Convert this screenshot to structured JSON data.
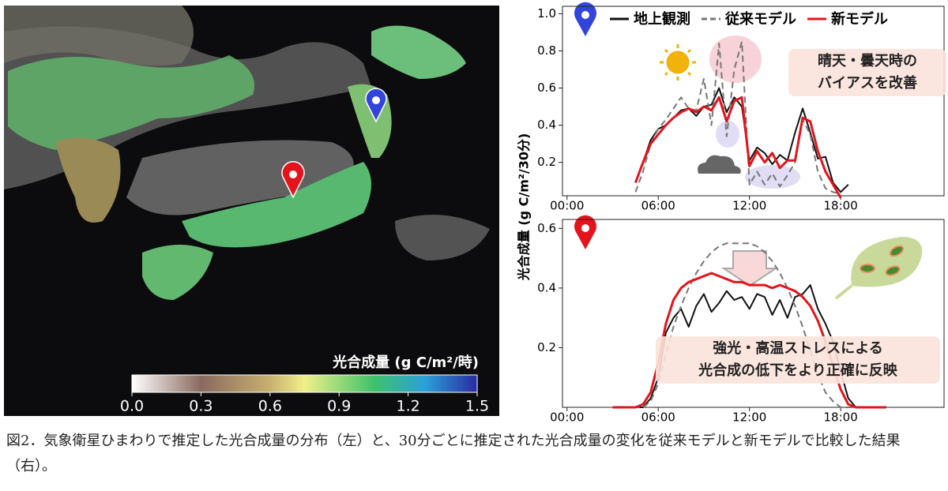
{
  "map": {
    "colorbar_title": "光合成量 (g C/m²/時)",
    "colorbar_lim": [
      0,
      1.5
    ],
    "colorbar_ticks": [
      {
        "value": 0,
        "label": "0.0"
      },
      0.3,
      0.6,
      0.9,
      1.2,
      1.5
    ]
  },
  "ylabel": "光合成量 (g C/m²/30分)",
  "chart_data": [
    {
      "type": "line",
      "xlim": [
        -0.3,
        24.8
      ],
      "ylim": [
        0.02,
        1.04
      ],
      "xticks": [
        {
          "value": 0,
          "label": "00:00"
        },
        {
          "value": 6,
          "label": "06:00"
        },
        {
          "value": 12,
          "label": "12:00"
        },
        {
          "value": 18,
          "label": "18:00"
        }
      ],
      "yticks": [
        0.2,
        0.4,
        0.6,
        0.8,
        {
          "value": 1,
          "label": "1.0"
        }
      ],
      "annotation": [
        "晴天・曇天時の",
        "バイアスを改善"
      ],
      "x": [
        4.5,
        5,
        5.5,
        6,
        6.5,
        7,
        7.5,
        8,
        8.5,
        9,
        9.5,
        10,
        10.5,
        11,
        11.5,
        12,
        12.5,
        13,
        13.5,
        14,
        14.5,
        15,
        15.5,
        16,
        16.5,
        17,
        17.5,
        18,
        18.5
      ],
      "series": [
        {
          "name": "地上観測",
          "color": "#111111",
          "dashed": false,
          "values": [
            null,
            0.2,
            0.32,
            0.38,
            0.4,
            0.44,
            0.48,
            0.49,
            0.45,
            0.5,
            0.51,
            0.6,
            0.47,
            0.55,
            0.5,
            0.21,
            0.28,
            0.25,
            0.19,
            0.24,
            0.21,
            0.36,
            0.49,
            0.36,
            0.22,
            0.23,
            0.09,
            0.04,
            0.08
          ]
        },
        {
          "name": "従来モデル",
          "color": "#777777",
          "dashed": true,
          "values": [
            0.04,
            0.15,
            0.3,
            0.38,
            0.43,
            0.49,
            0.55,
            0.49,
            0.48,
            0.65,
            0.4,
            0.84,
            0.34,
            0.7,
            0.85,
            0.08,
            0.15,
            0.08,
            0.14,
            0.07,
            0.13,
            0.2,
            0.43,
            0.35,
            0.15,
            0.06,
            0.04,
            0.03,
            null
          ]
        },
        {
          "name": "新モデル",
          "color": "#e3141b",
          "dashed": false,
          "values": [
            0.09,
            0.2,
            0.3,
            0.35,
            0.4,
            0.44,
            0.47,
            0.49,
            0.47,
            0.5,
            0.48,
            0.55,
            0.42,
            0.53,
            0.55,
            0.18,
            0.26,
            0.2,
            0.25,
            0.17,
            0.21,
            0.21,
            0.44,
            0.42,
            0.26,
            0.15,
            0.08,
            0.01,
            null
          ]
        }
      ]
    },
    {
      "type": "line",
      "xlim": [
        -0.3,
        24.8
      ],
      "ylim": [
        0,
        0.63
      ],
      "xticks": [
        {
          "value": 0,
          "label": "00:00"
        },
        {
          "value": 6,
          "label": "06:00"
        },
        {
          "value": 12,
          "label": "12:00"
        },
        {
          "value": 18,
          "label": "18:00"
        }
      ],
      "yticks": [
        0.2,
        0.4,
        0.6
      ],
      "annotation": [
        "強光・高温ストレスによる",
        "光合成の低下をより正確に反映"
      ],
      "x": [
        3,
        3.5,
        4,
        4.5,
        5,
        5.5,
        6,
        6.5,
        7,
        7.5,
        8,
        8.5,
        9,
        9.5,
        10,
        10.5,
        11,
        11.5,
        12,
        12.5,
        13,
        13.5,
        14,
        14.5,
        15,
        15.5,
        16,
        16.5,
        17,
        17.5,
        18,
        18.5,
        19,
        19.5,
        20,
        20.5,
        21
      ],
      "series": [
        {
          "color": "#111111",
          "dashed": false,
          "values": [
            0,
            0,
            0,
            0,
            0,
            0.03,
            0.1,
            0.25,
            0.3,
            0.33,
            0.27,
            0.34,
            0.38,
            0.32,
            0.35,
            0.39,
            0.36,
            0.37,
            0.33,
            0.38,
            0.37,
            0.31,
            0.36,
            0.3,
            0.37,
            0.38,
            0.41,
            0.33,
            0.28,
            0.22,
            0.12,
            0.03,
            0,
            0,
            0,
            0,
            0
          ]
        },
        {
          "color": "#777777",
          "dashed": true,
          "values": [
            0,
            0,
            0,
            0,
            0,
            0.02,
            0.08,
            0.18,
            0.27,
            0.34,
            0.4,
            0.45,
            0.49,
            0.52,
            0.54,
            0.55,
            0.55,
            0.55,
            0.55,
            0.54,
            0.52,
            0.49,
            0.45,
            0.4,
            0.34,
            0.27,
            0.19,
            0.11,
            0.05,
            0.02,
            0,
            0,
            0,
            0,
            0,
            0,
            0
          ]
        },
        {
          "color": "#e3141b",
          "dashed": false,
          "values": [
            0,
            0,
            0,
            0,
            0.01,
            0.05,
            0.15,
            0.28,
            0.36,
            0.4,
            0.42,
            0.43,
            0.44,
            0.45,
            0.44,
            0.43,
            0.42,
            0.42,
            0.41,
            0.41,
            0.41,
            0.4,
            0.41,
            0.4,
            0.39,
            0.37,
            0.34,
            0.29,
            0.22,
            0.14,
            0.06,
            0.01,
            0,
            0,
            0,
            0,
            0
          ]
        }
      ]
    }
  ],
  "caption": "図2．気象衛星ひまわりで推定した光合成量の分布（左）と、30分ごとに推定された光合成量の変化を従来モデルと新モデルで比較した結果（右）。"
}
